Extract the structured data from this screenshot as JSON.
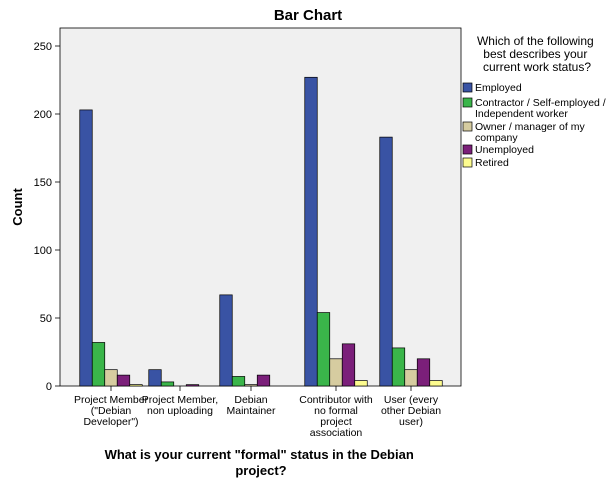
{
  "chart_data": {
    "type": "bar",
    "title": "Bar Chart",
    "xlabel": "What is your current \"formal\" status in the Debian project?",
    "ylabel": "Count",
    "ylim": [
      0,
      260
    ],
    "yticks": [
      0,
      50,
      100,
      150,
      200,
      250
    ],
    "grid": false,
    "legend_placement": "right",
    "legend_title": "Which of the following best describes your current work status?",
    "categories": [
      "Project Member (\"Debian Developer\")",
      "Project Member, non uploading",
      "Debian Maintainer",
      "Contributor with no formal project association",
      "User (every other Debian user)"
    ],
    "series": [
      {
        "name": "Employed",
        "color": "#3953a4",
        "values": [
          203,
          12,
          67,
          227,
          183
        ]
      },
      {
        "name": "Contractor / Self-employed / Independent worker",
        "color": "#3ab54a",
        "values": [
          32,
          3,
          7,
          54,
          28
        ]
      },
      {
        "name": "Owner / manager of my company",
        "color": "#d6cca0",
        "values": [
          12,
          0,
          1,
          20,
          12
        ]
      },
      {
        "name": "Unemployed",
        "color": "#7b1f7a",
        "values": [
          8,
          1,
          8,
          31,
          20
        ]
      },
      {
        "name": "Retired",
        "color": "#fdfc8f",
        "values": [
          1,
          0,
          0,
          4,
          4
        ]
      }
    ]
  }
}
